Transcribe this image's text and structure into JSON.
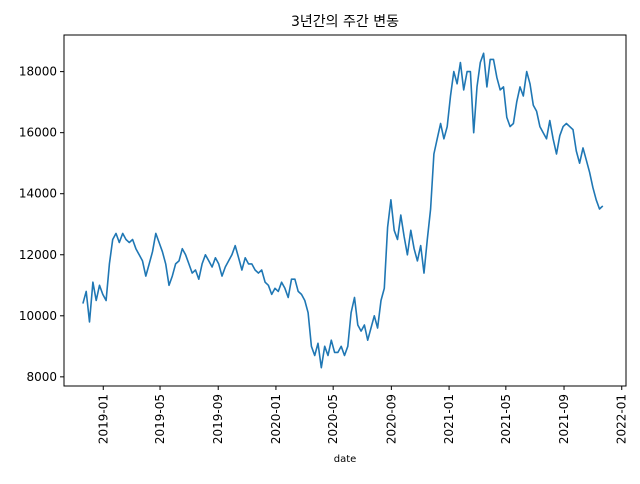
{
  "chart_data": {
    "type": "line",
    "title": "3년간의 주간 변동",
    "xlabel": "date",
    "ylabel": "",
    "grid": false,
    "legend": "none",
    "x_ticks": [
      "2019-01",
      "2019-05",
      "2019-09",
      "2020-01",
      "2020-05",
      "2020-09",
      "2021-01",
      "2021-05",
      "2021-09",
      "2022-01"
    ],
    "y_ticks": [
      "8000",
      "10000",
      "12000",
      "14000",
      "16000",
      "18000"
    ],
    "xlim": [
      "2018-10-10",
      "2022-01-10"
    ],
    "ylim": [
      7700,
      19200
    ],
    "series": [
      {
        "color": "#1f77b4",
        "points": [
          [
            "2018-11-19",
            10400
          ],
          [
            "2018-11-26",
            10800
          ],
          [
            "2018-12-03",
            9800
          ],
          [
            "2018-12-10",
            11100
          ],
          [
            "2018-12-17",
            10500
          ],
          [
            "2018-12-24",
            11000
          ],
          [
            "2018-12-31",
            10700
          ],
          [
            "2019-01-07",
            10500
          ],
          [
            "2019-01-14",
            11700
          ],
          [
            "2019-01-21",
            12500
          ],
          [
            "2019-01-28",
            12700
          ],
          [
            "2019-02-04",
            12400
          ],
          [
            "2019-02-11",
            12700
          ],
          [
            "2019-02-18",
            12500
          ],
          [
            "2019-02-25",
            12400
          ],
          [
            "2019-03-04",
            12500
          ],
          [
            "2019-03-11",
            12200
          ],
          [
            "2019-03-18",
            12000
          ],
          [
            "2019-03-25",
            11800
          ],
          [
            "2019-04-01",
            11300
          ],
          [
            "2019-04-08",
            11700
          ],
          [
            "2019-04-15",
            12100
          ],
          [
            "2019-04-22",
            12700
          ],
          [
            "2019-04-29",
            12400
          ],
          [
            "2019-05-06",
            12100
          ],
          [
            "2019-05-13",
            11700
          ],
          [
            "2019-05-20",
            11000
          ],
          [
            "2019-05-27",
            11300
          ],
          [
            "2019-06-03",
            11700
          ],
          [
            "2019-06-10",
            11800
          ],
          [
            "2019-06-17",
            12200
          ],
          [
            "2019-06-24",
            12000
          ],
          [
            "2019-07-01",
            11700
          ],
          [
            "2019-07-08",
            11400
          ],
          [
            "2019-07-15",
            11500
          ],
          [
            "2019-07-22",
            11200
          ],
          [
            "2019-07-29",
            11700
          ],
          [
            "2019-08-05",
            12000
          ],
          [
            "2019-08-12",
            11800
          ],
          [
            "2019-08-19",
            11600
          ],
          [
            "2019-08-26",
            11900
          ],
          [
            "2019-09-02",
            11700
          ],
          [
            "2019-09-09",
            11300
          ],
          [
            "2019-09-16",
            11600
          ],
          [
            "2019-09-23",
            11800
          ],
          [
            "2019-09-30",
            12000
          ],
          [
            "2019-10-07",
            12300
          ],
          [
            "2019-10-14",
            11900
          ],
          [
            "2019-10-21",
            11500
          ],
          [
            "2019-10-28",
            11900
          ],
          [
            "2019-11-04",
            11700
          ],
          [
            "2019-11-11",
            11700
          ],
          [
            "2019-11-18",
            11500
          ],
          [
            "2019-11-25",
            11400
          ],
          [
            "2019-12-02",
            11500
          ],
          [
            "2019-12-09",
            11100
          ],
          [
            "2019-12-16",
            11000
          ],
          [
            "2019-12-23",
            10700
          ],
          [
            "2019-12-30",
            10900
          ],
          [
            "2020-01-06",
            10800
          ],
          [
            "2020-01-13",
            11100
          ],
          [
            "2020-01-20",
            10900
          ],
          [
            "2020-01-27",
            10600
          ],
          [
            "2020-02-03",
            11200
          ],
          [
            "2020-02-10",
            11200
          ],
          [
            "2020-02-17",
            10800
          ],
          [
            "2020-02-24",
            10700
          ],
          [
            "2020-03-02",
            10500
          ],
          [
            "2020-03-09",
            10100
          ],
          [
            "2020-03-16",
            9000
          ],
          [
            "2020-03-23",
            8700
          ],
          [
            "2020-03-30",
            9100
          ],
          [
            "2020-04-06",
            8300
          ],
          [
            "2020-04-13",
            9000
          ],
          [
            "2020-04-20",
            8700
          ],
          [
            "2020-04-27",
            9200
          ],
          [
            "2020-05-04",
            8800
          ],
          [
            "2020-05-11",
            8800
          ],
          [
            "2020-05-18",
            9000
          ],
          [
            "2020-05-25",
            8700
          ],
          [
            "2020-06-01",
            9000
          ],
          [
            "2020-06-08",
            10100
          ],
          [
            "2020-06-15",
            10600
          ],
          [
            "2020-06-22",
            9700
          ],
          [
            "2020-06-29",
            9500
          ],
          [
            "2020-07-06",
            9700
          ],
          [
            "2020-07-13",
            9200
          ],
          [
            "2020-07-20",
            9600
          ],
          [
            "2020-07-27",
            10000
          ],
          [
            "2020-08-03",
            9600
          ],
          [
            "2020-08-10",
            10500
          ],
          [
            "2020-08-17",
            10900
          ],
          [
            "2020-08-24",
            12900
          ],
          [
            "2020-08-31",
            13800
          ],
          [
            "2020-09-07",
            12800
          ],
          [
            "2020-09-14",
            12500
          ],
          [
            "2020-09-21",
            13300
          ],
          [
            "2020-09-28",
            12600
          ],
          [
            "2020-10-05",
            12000
          ],
          [
            "2020-10-12",
            12800
          ],
          [
            "2020-10-19",
            12200
          ],
          [
            "2020-10-26",
            11800
          ],
          [
            "2020-11-02",
            12300
          ],
          [
            "2020-11-09",
            11400
          ],
          [
            "2020-11-16",
            12500
          ],
          [
            "2020-11-23",
            13500
          ],
          [
            "2020-11-30",
            15300
          ],
          [
            "2020-12-07",
            15800
          ],
          [
            "2020-12-14",
            16300
          ],
          [
            "2020-12-21",
            15800
          ],
          [
            "2020-12-28",
            16200
          ],
          [
            "2021-01-04",
            17200
          ],
          [
            "2021-01-11",
            18000
          ],
          [
            "2021-01-18",
            17600
          ],
          [
            "2021-01-25",
            18300
          ],
          [
            "2021-02-01",
            17400
          ],
          [
            "2021-02-08",
            18000
          ],
          [
            "2021-02-15",
            18000
          ],
          [
            "2021-02-22",
            16000
          ],
          [
            "2021-03-01",
            17500
          ],
          [
            "2021-03-08",
            18300
          ],
          [
            "2021-03-15",
            18600
          ],
          [
            "2021-03-22",
            17500
          ],
          [
            "2021-03-29",
            18400
          ],
          [
            "2021-04-05",
            18400
          ],
          [
            "2021-04-12",
            17800
          ],
          [
            "2021-04-19",
            17400
          ],
          [
            "2021-04-26",
            17500
          ],
          [
            "2021-05-03",
            16500
          ],
          [
            "2021-05-10",
            16200
          ],
          [
            "2021-05-17",
            16300
          ],
          [
            "2021-05-24",
            17000
          ],
          [
            "2021-05-31",
            17500
          ],
          [
            "2021-06-07",
            17200
          ],
          [
            "2021-06-14",
            18000
          ],
          [
            "2021-06-21",
            17600
          ],
          [
            "2021-06-28",
            16900
          ],
          [
            "2021-07-05",
            16700
          ],
          [
            "2021-07-12",
            16200
          ],
          [
            "2021-07-19",
            16000
          ],
          [
            "2021-07-26",
            15800
          ],
          [
            "2021-08-02",
            16400
          ],
          [
            "2021-08-09",
            15800
          ],
          [
            "2021-08-16",
            15300
          ],
          [
            "2021-08-23",
            15900
          ],
          [
            "2021-08-30",
            16200
          ],
          [
            "2021-09-06",
            16300
          ],
          [
            "2021-09-13",
            16200
          ],
          [
            "2021-09-20",
            16100
          ],
          [
            "2021-09-27",
            15400
          ],
          [
            "2021-10-04",
            15000
          ],
          [
            "2021-10-11",
            15500
          ],
          [
            "2021-10-18",
            15100
          ],
          [
            "2021-10-25",
            14700
          ],
          [
            "2021-11-01",
            14200
          ],
          [
            "2021-11-08",
            13800
          ],
          [
            "2021-11-15",
            13500
          ],
          [
            "2021-11-22",
            13600
          ]
        ]
      }
    ]
  }
}
